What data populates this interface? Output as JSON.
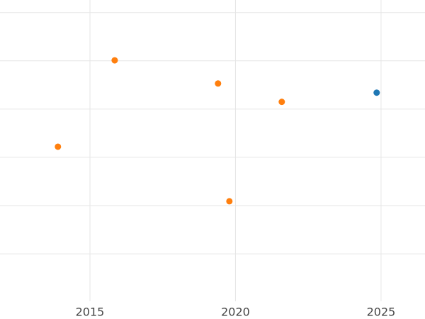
{
  "chart_data": {
    "type": "scatter",
    "xlim": [
      2011.91,
      2026.51
    ],
    "xticks": [
      2015,
      2020,
      2025
    ],
    "ylim": [
      -1.35,
      5.26
    ],
    "ygrid": [
      0,
      1,
      2,
      3,
      4,
      5
    ],
    "grid": true,
    "series": [
      {
        "color": "#ff7f0e",
        "x": [
          2013.9,
          2015.85,
          2019.4,
          2019.79,
          2021.59
        ],
        "values": [
          2.22,
          4.01,
          3.53,
          1.09,
          3.15
        ]
      },
      {
        "color": "#1f77b4",
        "x": [
          2024.85
        ],
        "values": [
          3.34
        ]
      }
    ]
  }
}
